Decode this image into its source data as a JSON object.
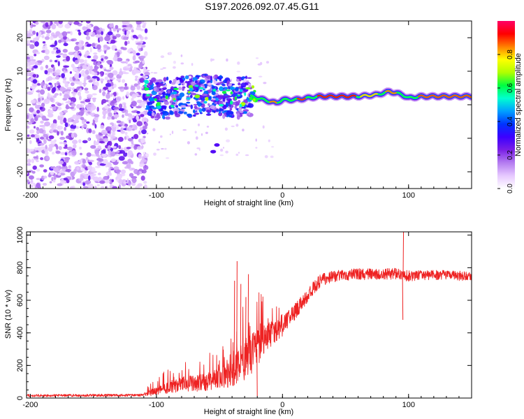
{
  "figure": {
    "title": "S197.2026.092.07.45.G11"
  },
  "chart_data": [
    {
      "type": "heatmap",
      "title": "S197.2026.092.07.45.G11",
      "xlabel": "Height of straight line (km)",
      "ylabel": "Frequency (Hz)",
      "xlim": [
        -203,
        150
      ],
      "ylim": [
        -25,
        25
      ],
      "x_ticks": [
        -200,
        -100,
        0,
        100
      ],
      "x_tick_labels": [
        "-200",
        "-100",
        "0",
        "100"
      ],
      "y_ticks": [
        -20,
        -10,
        0,
        10,
        20
      ],
      "y_tick_labels": [
        "-20",
        "-10",
        "0",
        "10",
        "20"
      ],
      "colorbar": {
        "label": "Normalized spectral amplitude",
        "range": [
          0,
          1
        ],
        "ticks": [
          0.0,
          0.2,
          0.4,
          0.6,
          0.8
        ],
        "tick_labels": [
          "0.0",
          "0.2",
          "0.4",
          "0.6",
          "0.8"
        ],
        "colormap": [
          "#ffffff",
          "#e6c8ff",
          "#b47cf0",
          "#7a1fe6",
          "#3c00ff",
          "#0033ff",
          "#00a0ff",
          "#00ffd0",
          "#00ff40",
          "#b0ff00",
          "#ffff00",
          "#ff8000",
          "#ff0000",
          "#ff0066"
        ]
      },
      "regions": {
        "noise_x_range": [
          -203,
          -108
        ],
        "noise_freq_range": [
          -25,
          25
        ],
        "transition_x_range": [
          -110,
          -25
        ],
        "signal_x_range": [
          -25,
          150
        ],
        "signal_track_frequency_hz": [
          [
            -110,
            4.5
          ],
          [
            -100,
            1.5
          ],
          [
            -80,
            2.5
          ],
          [
            -60,
            3.0
          ],
          [
            -40,
            2.0
          ],
          [
            -25,
            2.5
          ],
          [
            -15,
            1.5
          ],
          [
            -5,
            0.5
          ],
          [
            0,
            1.5
          ],
          [
            10,
            1.5
          ],
          [
            30,
            2.5
          ],
          [
            60,
            2.5
          ],
          [
            75,
            3.0
          ],
          [
            85,
            4.0
          ],
          [
            95,
            3.0
          ],
          [
            100,
            2.0
          ],
          [
            110,
            2.5
          ],
          [
            130,
            2.5
          ],
          [
            150,
            2.5
          ]
        ],
        "outliers": [
          {
            "x": -52,
            "y": -12
          },
          {
            "x": -55,
            "y": -14
          }
        ]
      }
    },
    {
      "type": "line",
      "xlabel": "Height of straight line (km)",
      "ylabel": "SNR (10 * v/v)",
      "xlim": [
        -203,
        150
      ],
      "ylim": [
        0,
        1020
      ],
      "x_ticks": [
        -200,
        -100,
        0,
        100
      ],
      "x_tick_labels": [
        "-200",
        "-100",
        "0",
        "100"
      ],
      "y_ticks": [
        0,
        200,
        400,
        600,
        800,
        1000
      ],
      "y_tick_labels": [
        "0",
        "200",
        "400",
        "600",
        "800",
        "1000"
      ],
      "line_color": "#ee2222",
      "series": [
        {
          "name": "SNR",
          "envelope_x": [
            -203,
            -110,
            -100,
            -90,
            -80,
            -70,
            -60,
            -50,
            -40,
            -35,
            -30,
            -25,
            -20,
            -15,
            -10,
            -5,
            0,
            5,
            10,
            15,
            20,
            25,
            30,
            40,
            50,
            60,
            70,
            80,
            90,
            100,
            110,
            120,
            130,
            140,
            150
          ],
          "envelope_mean": [
            15,
            18,
            45,
            70,
            85,
            90,
            100,
            120,
            150,
            190,
            230,
            260,
            300,
            350,
            390,
            410,
            440,
            480,
            530,
            580,
            630,
            680,
            720,
            745,
            755,
            760,
            760,
            760,
            765,
            750,
            755,
            755,
            755,
            750,
            750
          ],
          "noise_amplitude": [
            8,
            8,
            30,
            40,
            45,
            50,
            55,
            65,
            80,
            100,
            120,
            130,
            130,
            100,
            80,
            60,
            60,
            60,
            50,
            45,
            40,
            40,
            40,
            35,
            35,
            35,
            35,
            35,
            35,
            35,
            30,
            30,
            30,
            30,
            30
          ],
          "spikes": [
            {
              "x": -36,
              "y": 840
            },
            {
              "x": -38,
              "y": 720
            },
            {
              "x": -33,
              "y": 700
            },
            {
              "x": -27,
              "y": 760
            },
            {
              "x": -29,
              "y": 620
            },
            {
              "x": -20,
              "y": 10
            },
            {
              "x": 96,
              "y": 1020
            },
            {
              "x": 95.5,
              "y": 480
            }
          ]
        }
      ]
    }
  ]
}
